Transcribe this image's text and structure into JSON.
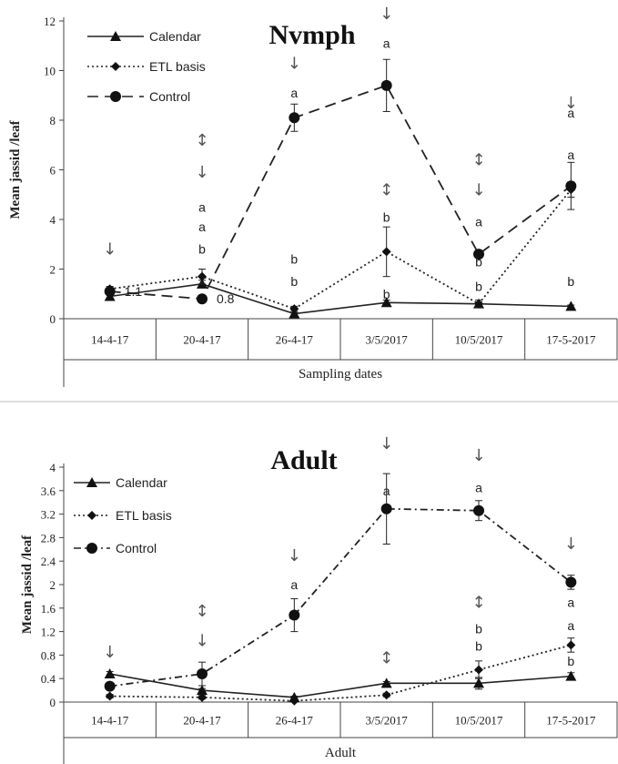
{
  "chart_data": [
    {
      "type": "line",
      "title": "Nvmph",
      "xlabel": "Sampling dates",
      "ylabel": "Mean jassid /leaf",
      "categories": [
        "14-4-17",
        "20-4-17",
        "26-4-17",
        "3/5/2017",
        "10/5/2017",
        "17-5-2017"
      ],
      "ylim": [
        0,
        12
      ],
      "yticks": [
        0,
        2,
        4,
        6,
        8,
        10,
        12
      ],
      "legend_position": "top-left",
      "series": [
        {
          "name": "Calendar",
          "style": "solid",
          "marker": "triangle",
          "values": [
            0.9,
            1.4,
            0.2,
            0.65,
            0.6,
            0.5
          ],
          "errors": [
            0.1,
            0.15,
            0.05,
            0.1,
            0.08,
            0.05
          ]
        },
        {
          "name": "ETL basis",
          "style": "dotted",
          "marker": "diamond",
          "values": [
            1.2,
            1.7,
            0.4,
            2.7,
            0.6,
            5.2
          ],
          "errors": [
            0.1,
            0.3,
            0.1,
            1.0,
            0.15,
            0.3
          ]
        },
        {
          "name": "Control",
          "style": "dashed",
          "marker": "circle",
          "values": [
            1.1,
            0.8,
            8.1,
            9.4,
            2.6,
            5.35
          ],
          "errors": [
            0.1,
            0.1,
            0.55,
            1.05,
            0.1,
            0.95
          ]
        }
      ],
      "value_labels": [
        {
          "category_index": 0,
          "value": 1.1,
          "text": "1.1"
        },
        {
          "category_index": 1,
          "value": 0.8,
          "text": "0.8"
        }
      ],
      "significance_letters": [
        {
          "category_index": 1,
          "letters": [
            "a",
            "a",
            "b"
          ],
          "values": [
            4.5,
            3.7,
            2.8
          ]
        },
        {
          "category_index": 2,
          "letters": [
            "a",
            "b",
            "b"
          ],
          "values": [
            9.1,
            2.4,
            1.5
          ]
        },
        {
          "category_index": 3,
          "letters": [
            "a",
            "b",
            "b"
          ],
          "values": [
            11.1,
            4.1,
            1.0
          ]
        },
        {
          "category_index": 4,
          "letters": [
            "a",
            "b",
            "b"
          ],
          "values": [
            3.9,
            2.3,
            1.3
          ]
        },
        {
          "category_index": 5,
          "letters": [
            "a",
            "a",
            "b"
          ],
          "values": [
            8.3,
            6.6,
            1.5
          ]
        }
      ],
      "spray_arrows": [
        {
          "category_index": 0,
          "symbols": [
            "↓"
          ],
          "values": [
            2.8
          ]
        },
        {
          "category_index": 1,
          "symbols": [
            "↕",
            "↓"
          ],
          "values": [
            7.2,
            5.9
          ]
        },
        {
          "category_index": 2,
          "symbols": [
            "↓"
          ],
          "values": [
            10.3
          ]
        },
        {
          "category_index": 3,
          "symbols": [
            "↓",
            "↕"
          ],
          "values": [
            12.3,
            5.2
          ]
        },
        {
          "category_index": 4,
          "symbols": [
            "↕",
            "↓"
          ],
          "values": [
            6.4,
            5.2
          ]
        },
        {
          "category_index": 5,
          "symbols": [
            "↓"
          ],
          "values": [
            8.7
          ]
        }
      ]
    },
    {
      "type": "line",
      "title": "Adult",
      "xlabel": "Adult",
      "ylabel": "Mean jassid /leaf",
      "categories": [
        "14-4-17",
        "20-4-17",
        "26-4-17",
        "3/5/2017",
        "10/5/2017",
        "17-5-2017"
      ],
      "ylim": [
        0,
        4
      ],
      "yticks": [
        0,
        0.4,
        0.8,
        1.2,
        1.6,
        2,
        2.4,
        2.8,
        3.2,
        3.6,
        4
      ],
      "legend_position": "top-left",
      "series": [
        {
          "name": "Calendar",
          "style": "solid",
          "marker": "triangle",
          "values": [
            0.48,
            0.2,
            0.08,
            0.32,
            0.32,
            0.44
          ],
          "errors": [
            0.04,
            0.03,
            0.02,
            0.03,
            0.1,
            0.06
          ]
        },
        {
          "name": "ETL basis",
          "style": "dotted",
          "marker": "diamond",
          "values": [
            0.1,
            0.08,
            0.02,
            0.12,
            0.55,
            0.97
          ],
          "errors": [
            0.03,
            0.03,
            0.02,
            0.03,
            0.15,
            0.12
          ]
        },
        {
          "name": "Control",
          "style": "dashdot",
          "marker": "circle",
          "values": [
            0.27,
            0.48,
            1.48,
            3.29,
            3.26,
            2.04
          ],
          "errors": [
            0.05,
            0.2,
            0.28,
            0.6,
            0.17,
            0.12
          ]
        }
      ],
      "significance_letters": [
        {
          "category_index": 2,
          "letters": [
            "a"
          ],
          "values": [
            2.0
          ]
        },
        {
          "category_index": 3,
          "letters": [
            "a"
          ],
          "values": [
            3.6
          ]
        },
        {
          "category_index": 4,
          "letters": [
            "a",
            "b",
            "b"
          ],
          "values": [
            3.65,
            1.25,
            0.95
          ]
        },
        {
          "category_index": 5,
          "letters": [
            "a",
            "a",
            "b"
          ],
          "values": [
            1.7,
            1.3,
            0.7
          ]
        }
      ],
      "spray_arrows": [
        {
          "category_index": 0,
          "symbols": [
            "↓"
          ],
          "values": [
            0.85
          ]
        },
        {
          "category_index": 1,
          "symbols": [
            "↕",
            "↓"
          ],
          "values": [
            1.55,
            1.05
          ]
        },
        {
          "category_index": 2,
          "symbols": [
            "↓"
          ],
          "values": [
            2.5
          ]
        },
        {
          "category_index": 3,
          "symbols": [
            "↓",
            "↕"
          ],
          "values": [
            4.4,
            0.75
          ]
        },
        {
          "category_index": 4,
          "symbols": [
            "↓",
            "↕"
          ],
          "values": [
            4.2,
            1.7
          ]
        },
        {
          "category_index": 5,
          "symbols": [
            "↓"
          ],
          "values": [
            2.7
          ]
        }
      ]
    }
  ],
  "colors": {
    "line": "#222222",
    "marker": "#111111",
    "arrow": "#555555",
    "separator": "#dddddd",
    "axis": "#444444"
  }
}
